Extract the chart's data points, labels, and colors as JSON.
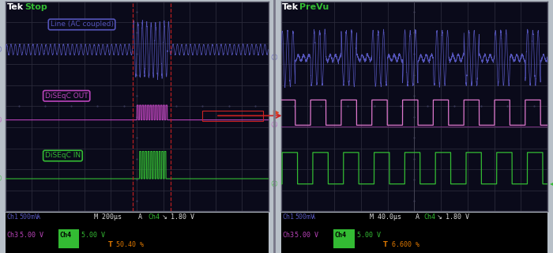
{
  "outer_bg": "#b8c0c8",
  "screen_bg": "#0a0a1a",
  "grid_color": "#2a2a3a",
  "status_bg": "#000000",
  "ch1_color": "#5555bb",
  "ch3_color": "#bb44bb",
  "ch3_light": "#dd88dd",
  "ch4_color": "#33bb33",
  "red_cursor": "#cc2222",
  "orange_color": "#dd7700",
  "green_bar": "#33bb33",
  "white": "#dddddd",
  "cyan": "#44cccc",
  "left_title_tek": "Tek",
  "left_title_mode": "Stop",
  "right_title_tek": "Tek",
  "right_title_mode": "PreVu",
  "label_line": "Line (AC coupled)",
  "label_out": "DiSEqC OUT",
  "label_in": "DiSEqC IN",
  "left_ch1_info": "Ch1   500mV",
  "left_time": "M 200µs",
  "left_trig": "A  Ch4",
  "left_trig_val": "1.80 V",
  "left_ch3": "Ch3   5.00 V",
  "left_ch4_bg": "Ch4",
  "left_ch4_val": "5.00 V",
  "left_pct": "50.40 %",
  "right_ch1_info": "Ch1   500mV",
  "right_time": "M 40.0µs",
  "right_trig": "A  Ch4",
  "right_trig_val": "1.80 V",
  "right_ch3": "Ch3   5.00 V",
  "right_ch4_bg": "Ch4",
  "right_ch4_val": "5.00 V",
  "right_pct": "6.600 %"
}
